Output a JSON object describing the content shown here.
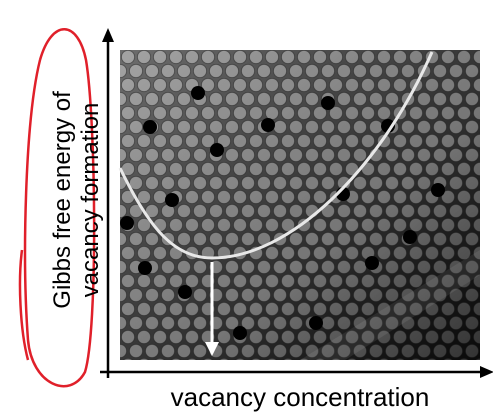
{
  "y_axis_label": {
    "lines": [
      "Gibbs free energy of",
      "vacancy formation"
    ]
  },
  "x_axis_label": "vacancy concentration"
}
